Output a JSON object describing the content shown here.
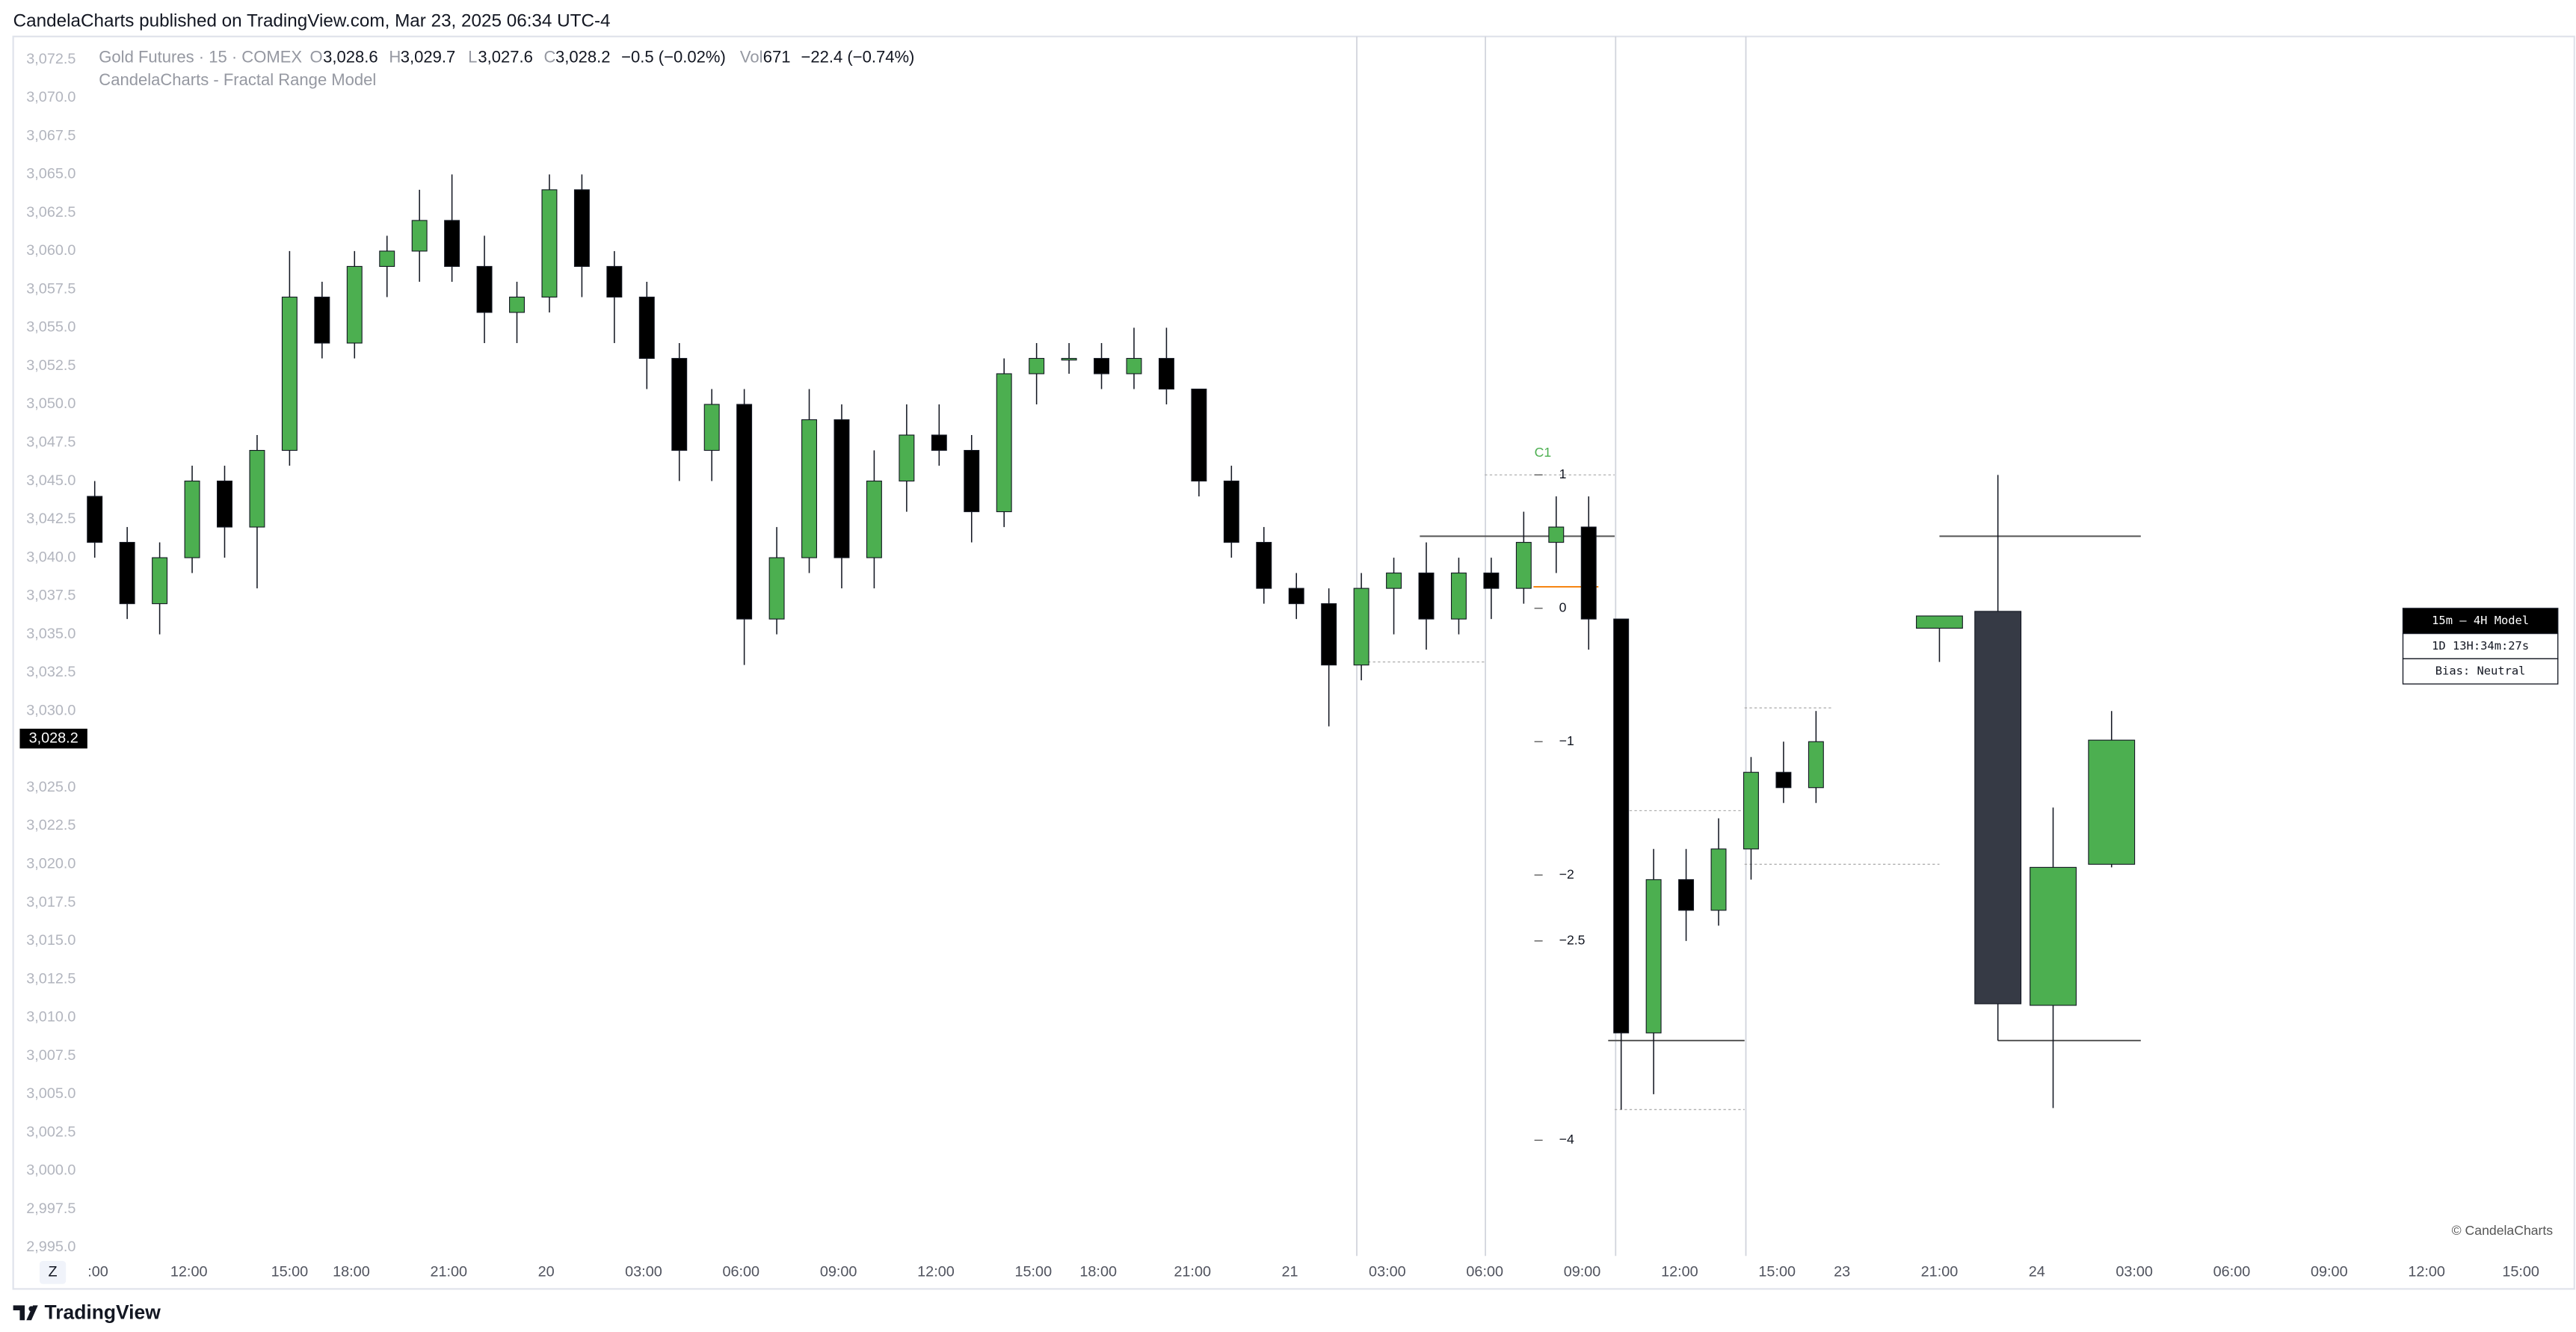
{
  "header": {
    "published": "CandelaCharts published on TradingView.com, Mar 23, 2025 06:34 UTC-4",
    "brand": "TradingView",
    "watermark": "© CandelaCharts",
    "zoom_button": "Z"
  },
  "chart_data": {
    "type": "candlestick",
    "title": "Gold Futures · 15 · COMEX",
    "subtitle": "CandelaCharts - Fractal Range Model",
    "legend": {
      "o_label": "O",
      "open": {
        "value": 3028.6,
        "label": "3,028.6"
      },
      "h_label": "H",
      "high": {
        "value": 3029.7,
        "label": "3,029.7"
      },
      "l_label": "L",
      "low": {
        "value": 3027.6,
        "label": "3,027.6"
      },
      "c_label": "C",
      "close": {
        "value": 3028.2,
        "label": "3,028.2"
      },
      "change": "−0.5 (−0.02%)",
      "vol_label": "Vol",
      "volume": 671,
      "vol_change": "−22.4 (−0.74%)"
    },
    "last_price": {
      "value": 3028.2,
      "label": "3,028.2"
    },
    "up_color": "#4caf50",
    "down_color": "#000000",
    "x": [
      1.8,
      2.8,
      3.8,
      4.8,
      5.8,
      6.8,
      7.8,
      8.8,
      9.8,
      10.8,
      11.8,
      12.8,
      13.8,
      14.8,
      15.8,
      16.8,
      17.8,
      18.8,
      19.8,
      20.8,
      21.8,
      22.8,
      23.8,
      24.8,
      25.8,
      26.8,
      27.8,
      28.8,
      29.8,
      30.8,
      31.8,
      32.8,
      33.8,
      34.8,
      35.8,
      36.8,
      37.8,
      38.8,
      39.8,
      40.8,
      41.8,
      42.8,
      43.8,
      44.8,
      45.8,
      46.8,
      47.8,
      48.8,
      49.8,
      50.8,
      51.8,
      52.8,
      53.8,
      54.8
    ],
    "open": [
      3044,
      3041,
      3037,
      3040,
      3045,
      3042,
      3047,
      3057,
      3054,
      3059,
      3060,
      3062,
      3059,
      3056,
      3057,
      3064,
      3059,
      3057,
      3053,
      3047,
      3050,
      3036,
      3040,
      3049,
      3040,
      3045,
      3048,
      3047,
      3043,
      3052,
      3053,
      3053,
      3052,
      3053,
      3051,
      3045,
      3041,
      3038,
      3037,
      3033,
      3038,
      3039,
      3036,
      3039,
      3038,
      3041,
      3042,
      3036,
      3009,
      3019,
      3017,
      3021,
      3026,
      3025
    ],
    "high": [
      3045,
      3042,
      3041,
      3046,
      3046,
      3048,
      3060,
      3058,
      3060,
      3061,
      3064,
      3065,
      3061,
      3058,
      3065,
      3065,
      3060,
      3058,
      3054,
      3051,
      3051,
      3042,
      3051,
      3050,
      3047,
      3050,
      3050,
      3048,
      3053,
      3054,
      3054,
      3054,
      3055,
      3055,
      3051,
      3046,
      3042,
      3039,
      3038,
      3039,
      3040,
      3041,
      3040,
      3040,
      3043,
      3044,
      3044,
      3036,
      3021,
      3021,
      3023,
      3027,
      3028,
      3030
    ],
    "low": [
      3040,
      3036,
      3035,
      3039,
      3040,
      3038,
      3046,
      3053,
      3053,
      3057,
      3058,
      3058,
      3054,
      3054,
      3056,
      3057,
      3054,
      3051,
      3045,
      3045,
      3033,
      3035,
      3039,
      3038,
      3038,
      3043,
      3046,
      3041,
      3042,
      3050,
      3052,
      3051,
      3051,
      3050,
      3044,
      3040,
      3037,
      3036,
      3029,
      3032,
      3035,
      3034,
      3035,
      3036,
      3037,
      3039,
      3034,
      3004,
      3005,
      3015,
      3016,
      3019,
      3024,
      3024
    ],
    "close": [
      3041,
      3037,
      3040,
      3045,
      3042,
      3047,
      3057,
      3054,
      3059,
      3060,
      3062,
      3059,
      3056,
      3057,
      3064,
      3059,
      3057,
      3053,
      3047,
      3050,
      3036,
      3040,
      3049,
      3040,
      3045,
      3048,
      3047,
      3043,
      3052,
      3053,
      3053,
      3052,
      3053,
      3051,
      3045,
      3041,
      3038,
      3037,
      3033,
      3038,
      3039,
      3036,
      3039,
      3038,
      3041,
      3042,
      3036,
      3009,
      3019,
      3017,
      3021,
      3026,
      3025,
      3028
    ],
    "ylim": [
      2992.3,
      3074.0
    ],
    "yticks": [
      {
        "value": 2995,
        "label": "2,995.0"
      },
      {
        "value": 2997.5,
        "label": "2,997.5"
      },
      {
        "value": 3000,
        "label": "3,000.0"
      },
      {
        "value": 3002.5,
        "label": "3,002.5"
      },
      {
        "value": 3005,
        "label": "3,005.0"
      },
      {
        "value": 3007.5,
        "label": "3,007.5"
      },
      {
        "value": 3010,
        "label": "3,010.0"
      },
      {
        "value": 3012.5,
        "label": "3,012.5"
      },
      {
        "value": 3015,
        "label": "3,015.0"
      },
      {
        "value": 3017.5,
        "label": "3,017.5"
      },
      {
        "value": 3020,
        "label": "3,020.0"
      },
      {
        "value": 3022.5,
        "label": "3,022.5"
      },
      {
        "value": 3025,
        "label": "3,025.0"
      },
      {
        "value": 3030,
        "label": "3,030.0"
      },
      {
        "value": 3032.5,
        "label": "3,032.5"
      },
      {
        "value": 3035,
        "label": "3,035.0"
      },
      {
        "value": 3037.5,
        "label": "3,037.5"
      },
      {
        "value": 3040,
        "label": "3,040.0"
      },
      {
        "value": 3042.5,
        "label": "3,042.5"
      },
      {
        "value": 3045,
        "label": "3,045.0"
      },
      {
        "value": 3047.5,
        "label": "3,047.5"
      },
      {
        "value": 3050,
        "label": "3,050.0"
      },
      {
        "value": 3052.5,
        "label": "3,052.5"
      },
      {
        "value": 3055,
        "label": "3,055.0"
      },
      {
        "value": 3057.5,
        "label": "3,057.5"
      },
      {
        "value": 3060,
        "label": "3,060.0"
      },
      {
        "value": 3062.5,
        "label": "3,062.5"
      },
      {
        "value": 3065,
        "label": "3,065.0"
      },
      {
        "value": 3067.5,
        "label": "3,067.5"
      },
      {
        "value": 3070,
        "label": "3,070.0"
      },
      {
        "value": 3072.5,
        "label": "3,072.5"
      }
    ],
    "xlim": [
      0,
      78.2
    ],
    "xticks": [
      {
        "value": 1.9,
        "label": ":00"
      },
      {
        "value": 4.7,
        "label": "12:00"
      },
      {
        "value": 7.8,
        "label": "15:00"
      },
      {
        "value": 9.7,
        "label": "18:00"
      },
      {
        "value": 12.7,
        "label": "21:00"
      },
      {
        "value": 15.7,
        "label": "20"
      },
      {
        "value": 18.7,
        "label": "03:00"
      },
      {
        "value": 21.7,
        "label": "06:00"
      },
      {
        "value": 24.7,
        "label": "09:00"
      },
      {
        "value": 27.7,
        "label": "12:00"
      },
      {
        "value": 30.7,
        "label": "15:00"
      },
      {
        "value": 32.7,
        "label": "18:00"
      },
      {
        "value": 35.6,
        "label": "21:00"
      },
      {
        "value": 38.6,
        "label": "21"
      },
      {
        "value": 41.6,
        "label": "03:00"
      },
      {
        "value": 44.6,
        "label": "06:00"
      },
      {
        "value": 47.6,
        "label": "09:00"
      },
      {
        "value": 50.6,
        "label": "12:00"
      },
      {
        "value": 53.6,
        "label": "15:00"
      },
      {
        "value": 55.6,
        "label": "23"
      },
      {
        "value": 58.6,
        "label": "21:00"
      },
      {
        "value": 61.6,
        "label": "24"
      },
      {
        "value": 64.6,
        "label": "03:00"
      },
      {
        "value": 67.6,
        "label": "06:00"
      },
      {
        "value": 70.6,
        "label": "09:00"
      },
      {
        "value": 73.6,
        "label": "12:00"
      },
      {
        "value": 76.5,
        "label": "15:00"
      }
    ],
    "session_lines": [
      40.66,
      44.62,
      48.63,
      52.64
    ],
    "levels": [
      {
        "price": 3041.4,
        "from": 42.6,
        "to": 48.6,
        "color": "#555555",
        "dotted": false
      },
      {
        "price": 3041.4,
        "from": 58.6,
        "to": 64.8,
        "color": "#555555",
        "dotted": false
      },
      {
        "price": 3008.5,
        "from": 48.4,
        "to": 52.6,
        "color": "#555555",
        "dotted": false
      },
      {
        "price": 3008.5,
        "from": 60.4,
        "to": 64.8,
        "color": "#555555",
        "dotted": false
      },
      {
        "price": 3038.1,
        "from": 46.1,
        "to": 48.1,
        "color": "#f57c00",
        "dotted": false
      },
      {
        "price": 3045.4,
        "from": 44.6,
        "to": 48.6,
        "color": "#b0b0b0",
        "dotted": true
      },
      {
        "price": 3033.2,
        "from": 40.7,
        "to": 44.6,
        "color": "#b0b0b0",
        "dotted": true
      },
      {
        "price": 3023.5,
        "from": 48.6,
        "to": 52.6,
        "color": "#b0b0b0",
        "dotted": true
      },
      {
        "price": 3004.0,
        "from": 48.6,
        "to": 52.6,
        "color": "#b0b0b0",
        "dotted": true
      },
      {
        "price": 3030.2,
        "from": 52.6,
        "to": 55.3,
        "color": "#b0b0b0",
        "dotted": true
      },
      {
        "price": 3020.0,
        "from": 52.6,
        "to": 58.6,
        "color": "#b0b0b0",
        "dotted": true
      }
    ],
    "fib_tag": "C1",
    "fib_levels": [
      {
        "value": 3045.4,
        "label": "1"
      },
      {
        "value": 3036.7,
        "label": "0"
      },
      {
        "value": 3028.0,
        "label": "−1"
      },
      {
        "value": 3019.3,
        "label": "−2"
      },
      {
        "value": 3015.0,
        "label": "−2.5"
      },
      {
        "value": 3002.0,
        "label": "−4"
      }
    ],
    "model": {
      "title": "15m — 4H Model",
      "timer": "1D 13H:34m:27s",
      "bias": "Bias: Neutral",
      "up_color": "#4caf50",
      "down_color": "#363a45",
      "x": [
        58.6,
        60.4,
        62.1,
        63.9
      ],
      "open": [
        3035.4,
        3036.5,
        3010.8,
        3020.0
      ],
      "high": [
        3036.2,
        3045.4,
        3023.7,
        3030.0
      ],
      "low": [
        3033.2,
        3008.5,
        3004.1,
        3019.8
      ],
      "close": [
        3036.2,
        3010.9,
        3019.8,
        3028.1
      ]
    }
  }
}
